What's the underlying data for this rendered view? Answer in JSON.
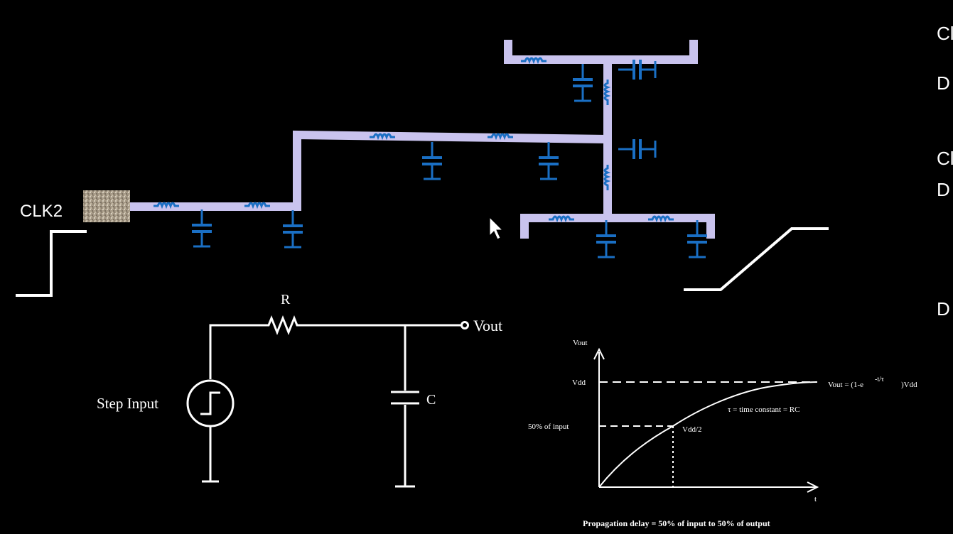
{
  "colors": {
    "background": "#000000",
    "wire": "#c9c3ee",
    "component": "#1a6fc4",
    "line": "#ffffff"
  },
  "clock": {
    "label": "CLK2"
  },
  "right_edge_labels": [
    "Cl",
    "D",
    "Cl",
    "D",
    "D"
  ],
  "rc_circuit": {
    "resistor_label": "R",
    "capacitor_label": "C",
    "output_label": "Vout",
    "source_label": "Step Input"
  },
  "graph": {
    "y_axis_label": "Vout",
    "x_axis_label": "t",
    "vdd_label": "Vdd",
    "half_input_label": "50% of input",
    "half_vdd_label": "Vdd/2",
    "equation_prefix": "Vout = (1-e",
    "equation_exponent": "-t/τ",
    "equation_suffix": ")Vdd",
    "tau_label": "τ = time constant = RC",
    "caption": "Propagation delay = 50% of input to 50% of output"
  }
}
